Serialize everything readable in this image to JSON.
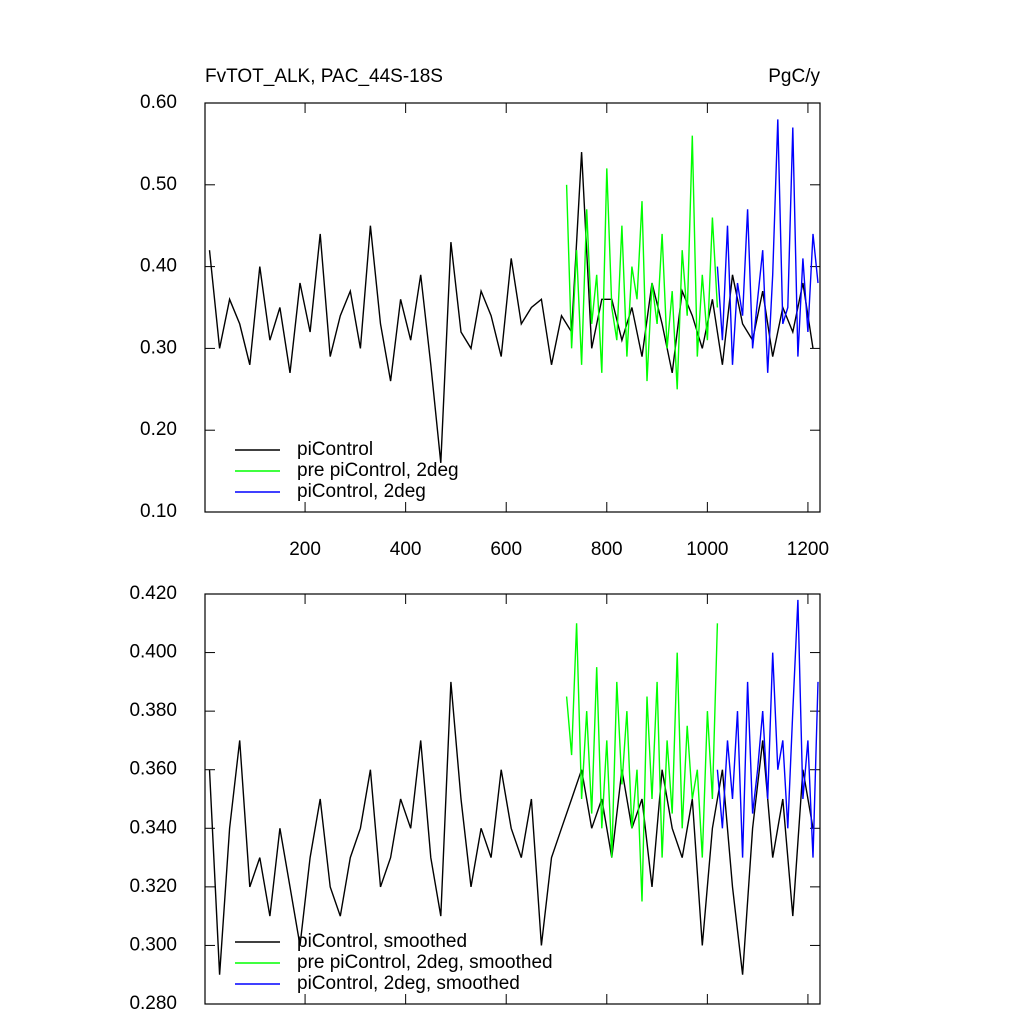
{
  "chart_data": [
    {
      "type": "line",
      "title": "FvTOT_ALK, PAC_44S-18S",
      "units": "PgC/y",
      "xlim": [
        1,
        1224
      ],
      "xticks": [
        200,
        400,
        600,
        800,
        1000,
        1200
      ],
      "ylim": [
        0.1,
        0.6
      ],
      "yticks": [
        {
          "value": 0.1,
          "label": "0.10"
        },
        {
          "value": 0.2,
          "label": "0.20"
        },
        {
          "value": 0.3,
          "label": "0.30"
        },
        {
          "value": 0.4,
          "label": "0.40"
        },
        {
          "value": 0.5,
          "label": "0.50"
        },
        {
          "value": 0.6,
          "label": "0.60"
        }
      ],
      "legend": "lower left",
      "series": [
        {
          "name": "piControl",
          "color": "#000000",
          "x": [
            10,
            30,
            50,
            70,
            90,
            110,
            130,
            150,
            170,
            190,
            210,
            230,
            250,
            270,
            290,
            310,
            330,
            350,
            370,
            390,
            410,
            430,
            450,
            470,
            490,
            510,
            530,
            550,
            570,
            590,
            610,
            630,
            650,
            670,
            690,
            710,
            730,
            750,
            770,
            790,
            810,
            830,
            850,
            870,
            890,
            910,
            930,
            950,
            970,
            990,
            1010,
            1030,
            1050,
            1070,
            1090,
            1110,
            1130,
            1150,
            1170,
            1190,
            1210
          ],
          "values": [
            0.42,
            0.3,
            0.36,
            0.33,
            0.28,
            0.4,
            0.31,
            0.35,
            0.27,
            0.38,
            0.32,
            0.44,
            0.29,
            0.34,
            0.37,
            0.3,
            0.45,
            0.33,
            0.26,
            0.36,
            0.31,
            0.39,
            0.28,
            0.16,
            0.43,
            0.32,
            0.3,
            0.37,
            0.34,
            0.29,
            0.41,
            0.33,
            0.35,
            0.36,
            0.28,
            0.34,
            0.32,
            0.54,
            0.3,
            0.36,
            0.36,
            0.31,
            0.35,
            0.29,
            0.38,
            0.33,
            0.27,
            0.37,
            0.34,
            0.3,
            0.36,
            0.28,
            0.39,
            0.33,
            0.31,
            0.37,
            0.29,
            0.35,
            0.32,
            0.38,
            0.3
          ]
        },
        {
          "name": "pre piControl, 2deg",
          "color": "#00ff00",
          "x": [
            720,
            730,
            740,
            750,
            760,
            770,
            780,
            790,
            800,
            810,
            820,
            830,
            840,
            850,
            860,
            870,
            880,
            890,
            900,
            910,
            920,
            930,
            940,
            950,
            960,
            970,
            980,
            990,
            1000,
            1010,
            1020
          ],
          "values": [
            0.5,
            0.3,
            0.42,
            0.28,
            0.47,
            0.33,
            0.39,
            0.27,
            0.52,
            0.35,
            0.31,
            0.45,
            0.29,
            0.4,
            0.36,
            0.48,
            0.26,
            0.38,
            0.33,
            0.44,
            0.3,
            0.37,
            0.25,
            0.42,
            0.34,
            0.56,
            0.29,
            0.39,
            0.31,
            0.46,
            0.35
          ]
        },
        {
          "name": "piControl, 2deg",
          "color": "#0000ff",
          "x": [
            1020,
            1030,
            1040,
            1050,
            1060,
            1070,
            1080,
            1090,
            1100,
            1110,
            1120,
            1130,
            1140,
            1150,
            1160,
            1170,
            1180,
            1190,
            1200,
            1210,
            1220
          ],
          "values": [
            0.4,
            0.31,
            0.45,
            0.28,
            0.38,
            0.34,
            0.47,
            0.3,
            0.36,
            0.42,
            0.27,
            0.39,
            0.58,
            0.33,
            0.35,
            0.57,
            0.29,
            0.41,
            0.32,
            0.44,
            0.38
          ]
        }
      ]
    },
    {
      "type": "line",
      "xlim": [
        1,
        1224
      ],
      "xticks": [
        200,
        400,
        600,
        800,
        1000,
        1200
      ],
      "ylim": [
        0.28,
        0.42
      ],
      "yticks": [
        {
          "value": 0.28,
          "label": "0.280"
        },
        {
          "value": 0.3,
          "label": "0.300"
        },
        {
          "value": 0.32,
          "label": "0.320"
        },
        {
          "value": 0.34,
          "label": "0.340"
        },
        {
          "value": 0.36,
          "label": "0.360"
        },
        {
          "value": 0.38,
          "label": "0.380"
        },
        {
          "value": 0.4,
          "label": "0.400"
        },
        {
          "value": 0.42,
          "label": "0.420"
        }
      ],
      "legend": "lower left",
      "series": [
        {
          "name": "piControl, smoothed",
          "color": "#000000",
          "x": [
            10,
            30,
            50,
            70,
            90,
            110,
            130,
            150,
            170,
            190,
            210,
            230,
            250,
            270,
            290,
            310,
            330,
            350,
            370,
            390,
            410,
            430,
            450,
            470,
            490,
            510,
            530,
            550,
            570,
            590,
            610,
            630,
            650,
            670,
            690,
            710,
            730,
            750,
            770,
            790,
            810,
            830,
            850,
            870,
            890,
            910,
            930,
            950,
            970,
            990,
            1010,
            1030,
            1050,
            1070,
            1090,
            1110,
            1130,
            1150,
            1170,
            1190,
            1210
          ],
          "values": [
            0.36,
            0.29,
            0.34,
            0.37,
            0.32,
            0.33,
            0.31,
            0.34,
            0.32,
            0.3,
            0.33,
            0.35,
            0.32,
            0.31,
            0.33,
            0.34,
            0.36,
            0.32,
            0.33,
            0.35,
            0.34,
            0.37,
            0.33,
            0.31,
            0.39,
            0.35,
            0.32,
            0.34,
            0.33,
            0.36,
            0.34,
            0.33,
            0.35,
            0.3,
            0.33,
            0.34,
            0.35,
            0.36,
            0.34,
            0.35,
            0.33,
            0.36,
            0.34,
            0.35,
            0.32,
            0.36,
            0.34,
            0.33,
            0.35,
            0.3,
            0.34,
            0.36,
            0.32,
            0.29,
            0.34,
            0.37,
            0.33,
            0.35,
            0.31,
            0.36,
            0.34
          ]
        },
        {
          "name": "pre piControl, 2deg, smoothed",
          "color": "#00ff00",
          "x": [
            720,
            730,
            740,
            750,
            760,
            770,
            780,
            790,
            800,
            810,
            820,
            830,
            840,
            850,
            860,
            870,
            880,
            890,
            900,
            910,
            920,
            930,
            940,
            950,
            960,
            970,
            980,
            990,
            1000,
            1010,
            1020
          ],
          "values": [
            0.385,
            0.365,
            0.41,
            0.35,
            0.38,
            0.345,
            0.395,
            0.34,
            0.37,
            0.33,
            0.39,
            0.355,
            0.38,
            0.34,
            0.36,
            0.315,
            0.385,
            0.35,
            0.39,
            0.33,
            0.37,
            0.345,
            0.4,
            0.34,
            0.375,
            0.35,
            0.36,
            0.33,
            0.38,
            0.35,
            0.41
          ]
        },
        {
          "name": "piControl, 2deg, smoothed",
          "color": "#0000ff",
          "x": [
            1020,
            1030,
            1040,
            1050,
            1060,
            1070,
            1080,
            1090,
            1100,
            1110,
            1120,
            1130,
            1140,
            1150,
            1160,
            1170,
            1180,
            1190,
            1200,
            1210,
            1220
          ],
          "values": [
            0.36,
            0.34,
            0.37,
            0.35,
            0.38,
            0.33,
            0.39,
            0.345,
            0.36,
            0.38,
            0.35,
            0.4,
            0.36,
            0.37,
            0.34,
            0.38,
            0.418,
            0.35,
            0.37,
            0.33,
            0.39
          ]
        }
      ]
    }
  ]
}
